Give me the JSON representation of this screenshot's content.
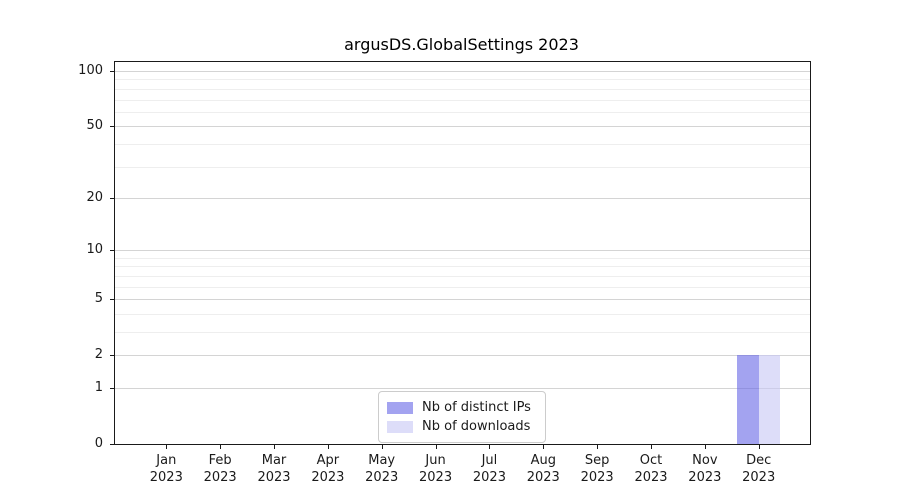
{
  "chart_data": {
    "type": "bar",
    "title": "argusDS.GlobalSettings 2023",
    "categories": [
      {
        "month": "Jan",
        "year": "2023"
      },
      {
        "month": "Feb",
        "year": "2023"
      },
      {
        "month": "Mar",
        "year": "2023"
      },
      {
        "month": "Apr",
        "year": "2023"
      },
      {
        "month": "May",
        "year": "2023"
      },
      {
        "month": "Jun",
        "year": "2023"
      },
      {
        "month": "Jul",
        "year": "2023"
      },
      {
        "month": "Aug",
        "year": "2023"
      },
      {
        "month": "Sep",
        "year": "2023"
      },
      {
        "month": "Oct",
        "year": "2023"
      },
      {
        "month": "Nov",
        "year": "2023"
      },
      {
        "month": "Dec",
        "year": "2023"
      }
    ],
    "series": [
      {
        "name": "Nb of distinct IPs",
        "color": "#6666e6",
        "values": [
          0,
          0,
          0,
          0,
          0,
          0,
          0,
          0,
          0,
          0,
          0,
          2
        ]
      },
      {
        "name": "Nb of downloads",
        "color": "#c6c6f5",
        "values": [
          0,
          0,
          0,
          0,
          0,
          0,
          0,
          0,
          0,
          0,
          0,
          2
        ]
      }
    ],
    "xlabel": "",
    "ylabel": "",
    "yscale": "log1p",
    "yticks": [
      0,
      1,
      2,
      5,
      10,
      20,
      50,
      100
    ],
    "yticks_minor": [
      3,
      4,
      6,
      7,
      8,
      9,
      30,
      40,
      60,
      70,
      80,
      90
    ],
    "ylim": [
      0,
      112
    ],
    "grid": true,
    "legend_position": "lower-center"
  },
  "colors": {
    "major_grid": "#d4d4d4",
    "minor_grid": "#eeeeee",
    "spine": "#1a1a1a",
    "background": "#ffffff"
  }
}
